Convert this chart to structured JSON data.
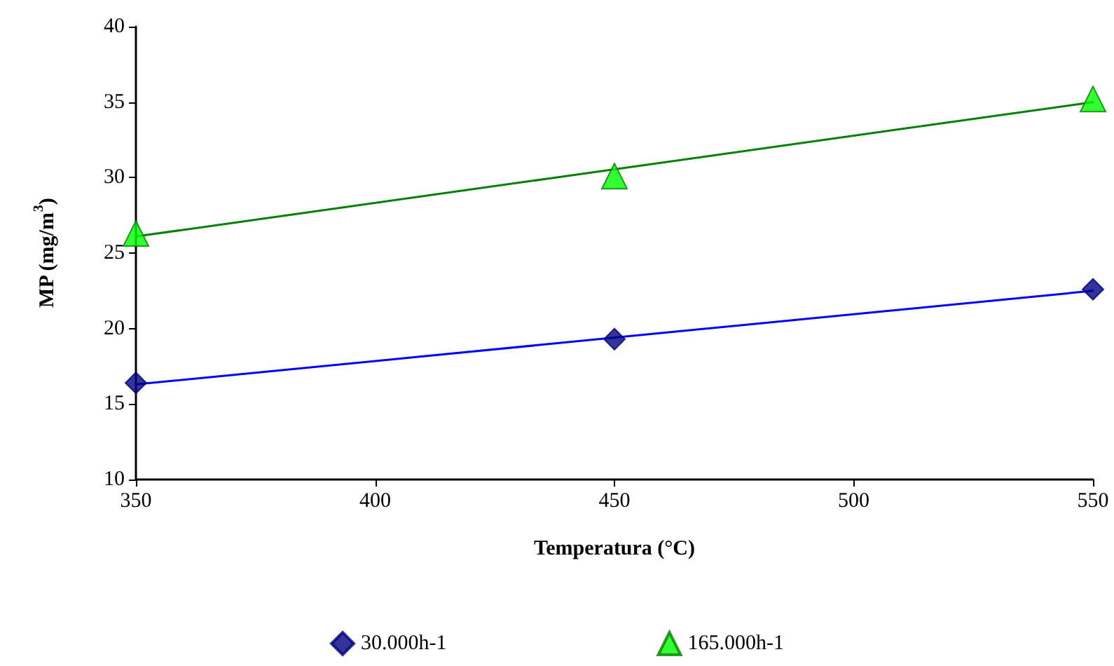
{
  "chart_data": {
    "type": "scatter",
    "xlabel": "Temperatura (°C)",
    "ylabel": "MP (mg/m$^{3}$)",
    "xlim": [
      350,
      550
    ],
    "xticks": [
      350,
      400,
      450,
      500,
      550
    ],
    "ylim": [
      10,
      40
    ],
    "yticks": [
      10,
      15,
      20,
      25,
      30,
      35,
      40
    ],
    "grid": false,
    "legend": "bottom",
    "series": [
      {
        "name": "30.000h-1",
        "color": "#000080",
        "marker": "diamond",
        "x": [
          350,
          450,
          550
        ],
        "values": [
          16.4,
          19.3,
          22.6
        ]
      },
      {
        "name": "165.000h-1",
        "color": "#00ff00",
        "marker": "triangle",
        "x": [
          350,
          450,
          550
        ],
        "values": [
          26.3,
          30.1,
          35.2
        ]
      },
      {
        "type": "line",
        "color": "#0000ff",
        "marker": "none",
        "line_style": "solid",
        "x": [
          350,
          550
        ],
        "values": [
          16.3,
          22.5
        ]
      },
      {
        "type": "line",
        "color": "#008000",
        "marker": "none",
        "line_style": "solid",
        "x": [
          350,
          550
        ],
        "values": [
          26.1,
          35.0
        ]
      }
    ]
  }
}
